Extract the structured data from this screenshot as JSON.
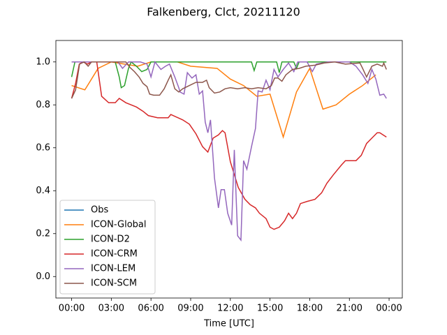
{
  "chart_data": {
    "type": "line",
    "title": "Falkenberg, Clct, 20211120",
    "x_label": "Time [UTC]",
    "xlim": [
      -1.19,
      25.0
    ],
    "ylim": [
      -0.1,
      1.1
    ],
    "xticks": [
      {
        "value": 0,
        "label": "00:00"
      },
      {
        "value": 3,
        "label": "03:00"
      },
      {
        "value": 6,
        "label": "06:00"
      },
      {
        "value": 9,
        "label": "09:00"
      },
      {
        "value": 12,
        "label": "12:00"
      },
      {
        "value": 15,
        "label": "15:00"
      },
      {
        "value": 18,
        "label": "18:00"
      },
      {
        "value": 21,
        "label": "21:00"
      },
      {
        "value": 24,
        "label": "00:00"
      }
    ],
    "yticks": [
      {
        "value": 0,
        "label": "0.0"
      },
      0.2,
      0.4,
      0.6,
      0.8,
      {
        "value": 1,
        "label": "1.0"
      }
    ],
    "grid": false,
    "legend": "lower left",
    "series": [
      {
        "name": "Obs",
        "color": "#1f77b4",
        "x": [],
        "values": []
      },
      {
        "name": "ICON-Global",
        "color": "#ff7f0e",
        "x": [
          0,
          1,
          2,
          3,
          4,
          5,
          6,
          7,
          8,
          9,
          11,
          12,
          13,
          14,
          15,
          16,
          17,
          18,
          19,
          20,
          21,
          22,
          23
        ],
        "values": [
          0.89,
          0.87,
          0.97,
          1.0,
          0.99,
          0.98,
          1.0,
          1.0,
          1.0,
          0.98,
          0.97,
          0.92,
          0.89,
          0.84,
          0.85,
          0.65,
          0.86,
          0.97,
          0.78,
          0.8,
          0.85,
          0.89,
          0.94
        ]
      },
      {
        "name": "ICON-D2",
        "color": "#2ca02c",
        "x": [
          0,
          0.25,
          3.3,
          3.6,
          3.75,
          4.0,
          4.3,
          4.5,
          4.9,
          5.3,
          5.7,
          6.0,
          13.6,
          13.8,
          14.0,
          15.5,
          15.7,
          15.9,
          16.8,
          17.0,
          17.2,
          23.8
        ],
        "values": [
          0.93,
          1.0,
          1.0,
          0.93,
          0.88,
          0.89,
          0.97,
          1.0,
          0.98,
          0.955,
          0.965,
          1.0,
          1.0,
          0.96,
          1.0,
          1.0,
          0.95,
          1.0,
          1.0,
          0.97,
          1.0,
          1.0
        ]
      },
      {
        "name": "ICON-CRM",
        "color": "#d62728",
        "x": [
          0,
          0.3,
          0.58,
          0.85,
          1.2,
          1.5,
          1.9,
          2.27,
          2.8,
          3.3,
          3.6,
          4.1,
          4.9,
          5.4,
          5.8,
          6.5,
          7.3,
          7.5,
          8.4,
          8.9,
          9.4,
          9.9,
          10.3,
          10.7,
          11.1,
          11.4,
          11.6,
          12.0,
          12.6,
          13.1,
          13.5,
          13.9,
          14.2,
          14.7,
          15.0,
          15.3,
          15.7,
          16.1,
          16.4,
          16.7,
          17.0,
          17.3,
          17.8,
          18.4,
          18.9,
          19.3,
          19.8,
          20.4,
          20.7,
          21.5,
          21.9,
          22.3,
          22.7,
          23.1,
          23.3,
          23.8
        ],
        "values": [
          0.83,
          0.9,
          0.99,
          1.0,
          0.99,
          1.0,
          1.0,
          0.84,
          0.81,
          0.81,
          0.83,
          0.81,
          0.79,
          0.77,
          0.75,
          0.74,
          0.74,
          0.755,
          0.73,
          0.71,
          0.665,
          0.605,
          0.58,
          0.645,
          0.66,
          0.68,
          0.67,
          0.535,
          0.415,
          0.36,
          0.335,
          0.32,
          0.295,
          0.27,
          0.23,
          0.22,
          0.23,
          0.26,
          0.295,
          0.27,
          0.295,
          0.34,
          0.35,
          0.36,
          0.39,
          0.435,
          0.475,
          0.52,
          0.54,
          0.54,
          0.565,
          0.62,
          0.645,
          0.67,
          0.67,
          0.65
        ]
      },
      {
        "name": "ICON-LEM",
        "color": "#9467bd",
        "x": [
          0,
          3.5,
          3.85,
          4.3,
          5.2,
          5.7,
          6.0,
          6.3,
          6.75,
          7.1,
          7.4,
          7.8,
          8.1,
          8.2,
          8.5,
          8.75,
          9.1,
          9.4,
          9.65,
          9.9,
          10.1,
          10.3,
          10.5,
          10.8,
          11.1,
          11.3,
          11.55,
          11.8,
          12.1,
          12.3,
          12.55,
          12.8,
          13.0,
          13.25,
          13.6,
          13.9,
          14.1,
          14.4,
          14.7,
          15.0,
          15.3,
          15.6,
          16.0,
          16.4,
          16.8,
          17.1,
          17.8,
          18.2,
          18.5,
          19.4,
          21.0,
          21.5,
          22.0,
          22.4,
          22.7,
          23.0,
          23.3,
          23.6,
          23.8
        ],
        "values": [
          1.0,
          1.0,
          0.97,
          1.0,
          1.0,
          0.99,
          0.93,
          1.0,
          0.965,
          0.98,
          0.99,
          0.93,
          0.88,
          0.86,
          0.85,
          0.95,
          0.925,
          0.94,
          0.85,
          0.865,
          0.72,
          0.67,
          0.73,
          0.46,
          0.32,
          0.405,
          0.405,
          0.295,
          0.24,
          0.59,
          0.19,
          0.17,
          0.54,
          0.5,
          0.605,
          0.69,
          0.865,
          0.86,
          0.915,
          0.87,
          0.965,
          0.93,
          0.965,
          0.995,
          0.955,
          1.0,
          1.0,
          0.955,
          0.99,
          1.0,
          1.0,
          0.98,
          0.94,
          0.9,
          0.965,
          0.92,
          0.845,
          0.85,
          0.83
        ]
      },
      {
        "name": "ICON-SCM",
        "color": "#8c564b",
        "x": [
          0,
          0.3,
          0.6,
          0.95,
          1.25,
          1.5,
          2.5,
          3.3,
          4.1,
          4.4,
          4.75,
          5.1,
          5.4,
          5.7,
          5.9,
          6.2,
          6.65,
          7.0,
          7.3,
          7.5,
          7.8,
          8.1,
          8.4,
          8.9,
          9.4,
          9.9,
          10.2,
          10.4,
          10.8,
          11.2,
          11.6,
          12.0,
          12.55,
          13.1,
          13.6,
          14.1,
          14.7,
          15.1,
          15.35,
          15.6,
          15.9,
          16.2,
          16.7,
          17.2,
          17.7,
          18.4,
          19.1,
          19.9,
          20.7,
          21.8,
          22.0,
          22.3,
          22.7,
          23.1,
          23.5,
          23.6,
          23.8
        ],
        "values": [
          0.83,
          0.87,
          0.99,
          1.0,
          0.98,
          1.0,
          1.0,
          1.0,
          1.0,
          0.975,
          0.955,
          0.93,
          0.9,
          0.885,
          0.85,
          0.845,
          0.845,
          0.875,
          0.915,
          0.94,
          0.875,
          0.86,
          0.875,
          0.89,
          0.905,
          0.905,
          0.915,
          0.88,
          0.855,
          0.86,
          0.875,
          0.88,
          0.875,
          0.88,
          0.875,
          0.88,
          0.875,
          0.89,
          0.925,
          0.925,
          0.91,
          0.94,
          0.965,
          0.97,
          0.98,
          0.985,
          0.995,
          1.0,
          0.99,
          0.995,
          0.97,
          0.93,
          0.98,
          0.99,
          0.98,
          0.995,
          0.965
        ]
      }
    ]
  }
}
